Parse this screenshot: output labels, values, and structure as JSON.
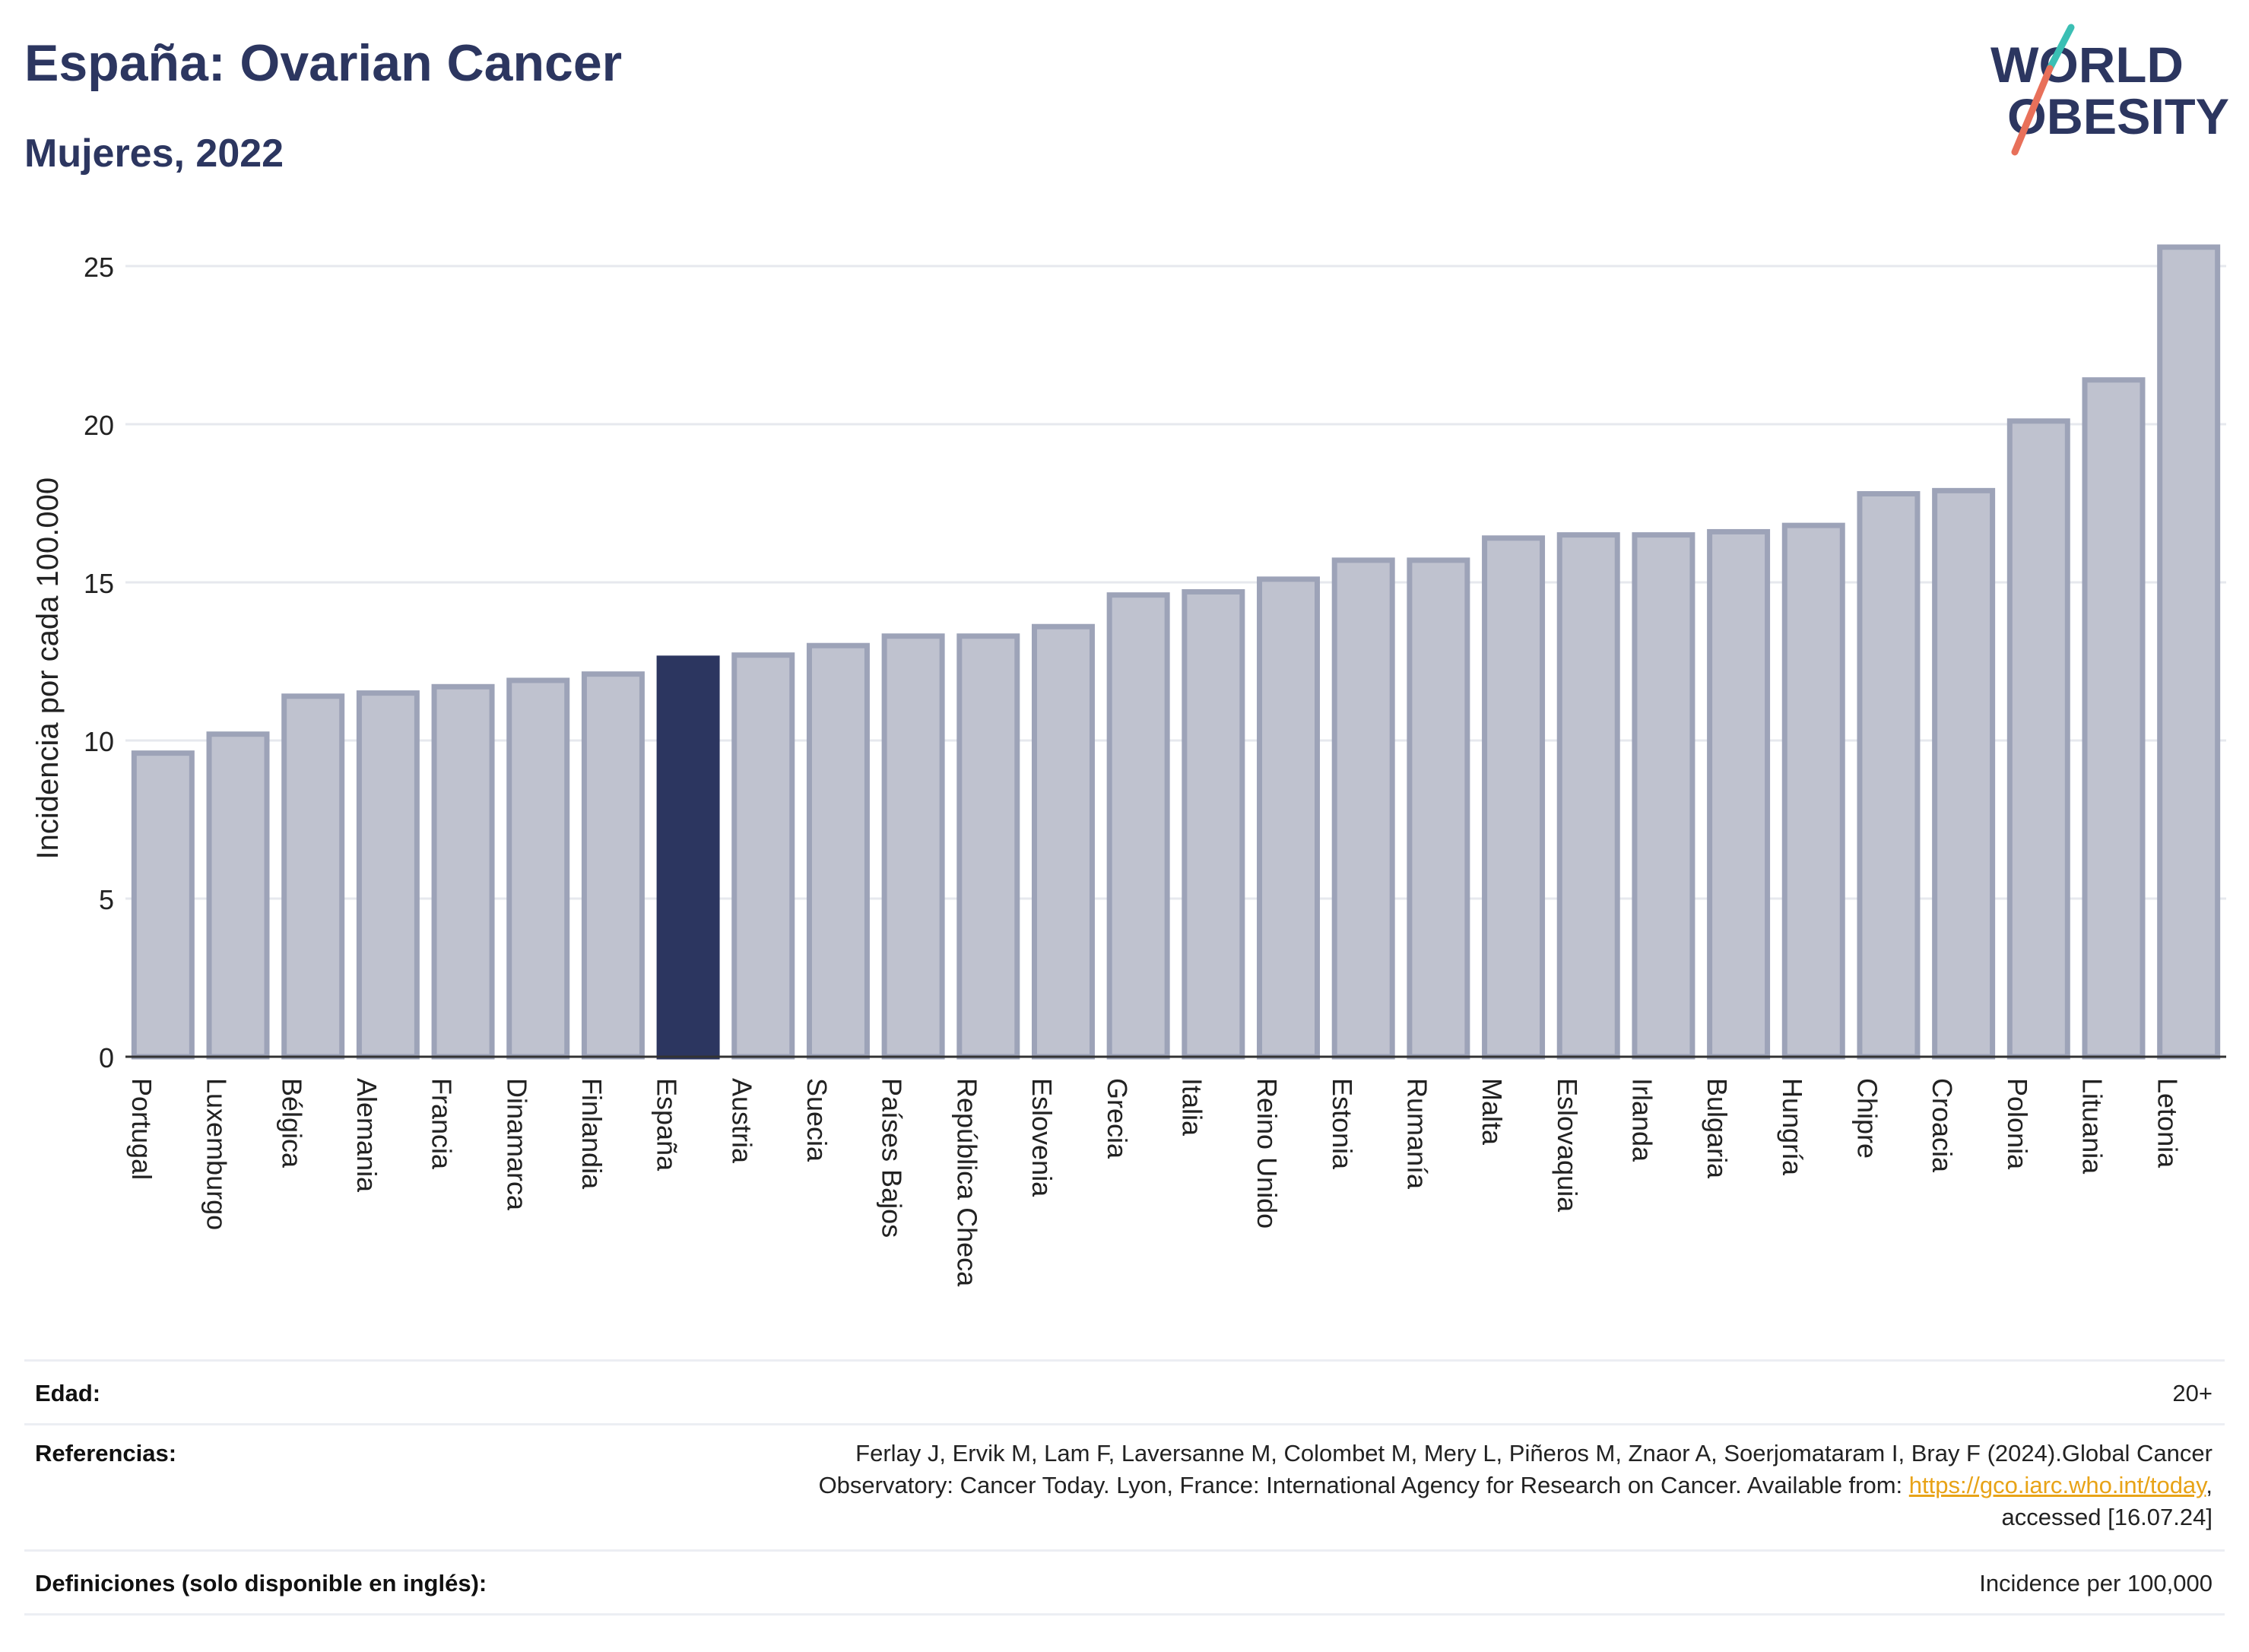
{
  "header": {
    "title": "España: Ovarian Cancer",
    "subtitle": "Mujeres, 2022"
  },
  "logo": {
    "line1": "WORLD",
    "line2": "OBESITY",
    "colors": {
      "text": "#2c3660",
      "slash_teal": "#3bbfb4",
      "slash_coral": "#e8705a"
    }
  },
  "chart_data": {
    "type": "bar",
    "title": "",
    "xlabel": "",
    "ylabel": "Incidencia por cada 100.000",
    "ylim": [
      0,
      26
    ],
    "yticks": [
      0,
      5,
      10,
      15,
      20,
      25
    ],
    "grid": true,
    "highlight_category": "España",
    "colors": {
      "bar": "#bfc2cf",
      "bar_border": "#9da3b8",
      "highlight": "#2c3660",
      "grid": "#e6e8ee",
      "axis": "#333333"
    },
    "categories": [
      "Portugal",
      "Luxemburgo",
      "Bélgica",
      "Alemania",
      "Francia",
      "Dinamarca",
      "Finlandia",
      "España",
      "Austria",
      "Suecia",
      "Países Bajos",
      "República Checa",
      "Eslovenia",
      "Grecia",
      "Italia",
      "Reino Unido",
      "Estonia",
      "Rumanía",
      "Malta",
      "Eslovaquia",
      "Irlanda",
      "Bulgaria",
      "Hungría",
      "Chipre",
      "Croacia",
      "Polonia",
      "Lituania",
      "Letonia"
    ],
    "values": [
      9.6,
      10.2,
      11.4,
      11.5,
      11.7,
      11.9,
      12.1,
      12.6,
      12.7,
      13.0,
      13.3,
      13.3,
      13.6,
      14.6,
      14.7,
      15.1,
      15.7,
      15.7,
      16.4,
      16.5,
      16.5,
      16.6,
      16.8,
      17.8,
      17.9,
      20.1,
      21.4,
      25.6
    ]
  },
  "footer": {
    "age_label": "Edad:",
    "age_value": "20+",
    "references_label": "Referencias:",
    "references_line1": "Ferlay J, Ervik M, Lam F, Laversanne M, Colombet M, Mery L, Piñeros M, Znaor A, Soerjomataram I, Bray F (2024).Global Cancer",
    "references_line2_prefix": "Observatory: Cancer Today. Lyon, France: International Agency for Research on Cancer. Available from: ",
    "references_link": "https://gco.iarc.who.int/today",
    "references_line2_suffix": ",",
    "references_line3": "accessed [16.07.24]",
    "definitions_label": "Definiciones (solo disponible en inglés):",
    "definitions_value": "Incidence per 100,000"
  }
}
